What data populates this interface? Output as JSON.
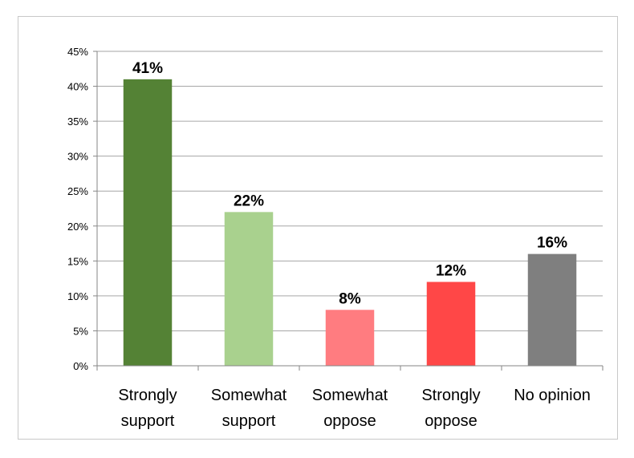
{
  "chart_data": {
    "type": "bar",
    "categories": [
      [
        "Strongly",
        "support"
      ],
      [
        "Somewhat",
        "support"
      ],
      [
        "Somewhat",
        "oppose"
      ],
      [
        "Strongly",
        "oppose"
      ],
      [
        "No opinion"
      ]
    ],
    "values": [
      41,
      22,
      8,
      12,
      16
    ],
    "data_labels": [
      "41%",
      "22%",
      "8%",
      "12%",
      "16%"
    ],
    "bar_colors": [
      "#548235",
      "#a9d18e",
      "#ff7c80",
      "#ff4747",
      "#7f7f7f"
    ],
    "ylim": [
      0,
      45
    ],
    "yticks": [
      0,
      5,
      10,
      15,
      20,
      25,
      30,
      35,
      40,
      45
    ],
    "ytick_labels": [
      "0%",
      "5%",
      "10%",
      "15%",
      "20%",
      "25%",
      "30%",
      "35%",
      "40%",
      "45%"
    ],
    "grid": true,
    "grid_color": "#a6a6a6",
    "title": "",
    "xlabel": "",
    "ylabel": ""
  }
}
